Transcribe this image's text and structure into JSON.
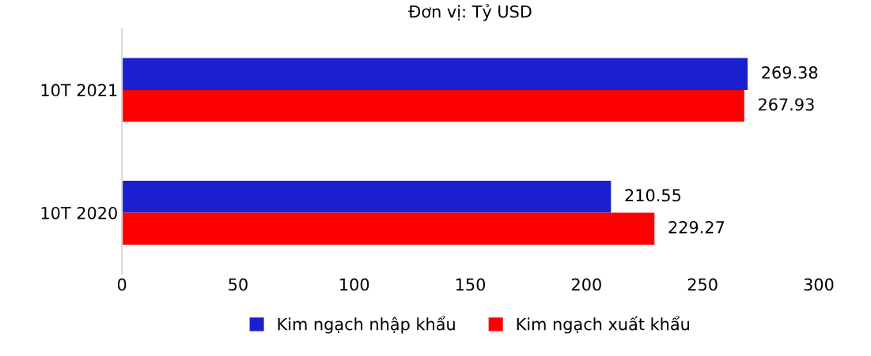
{
  "chart_data": {
    "type": "bar",
    "orientation": "horizontal",
    "title": "Đơn vị: Tỷ USD",
    "categories": [
      "10T 2021",
      "10T 2020"
    ],
    "series": [
      {
        "name": "Kim ngạch nhập khẩu",
        "color": "#1a1fd0",
        "values": [
          269.38,
          210.55
        ]
      },
      {
        "name": "Kim ngạch xuất khẩu",
        "color": "#ff0000",
        "values": [
          267.93,
          229.27
        ]
      }
    ],
    "xlim": [
      0,
      300
    ],
    "xticks": [
      0,
      50,
      100,
      150,
      200,
      250,
      300
    ],
    "data_labels": true,
    "grid": false,
    "legend": "bottom"
  }
}
